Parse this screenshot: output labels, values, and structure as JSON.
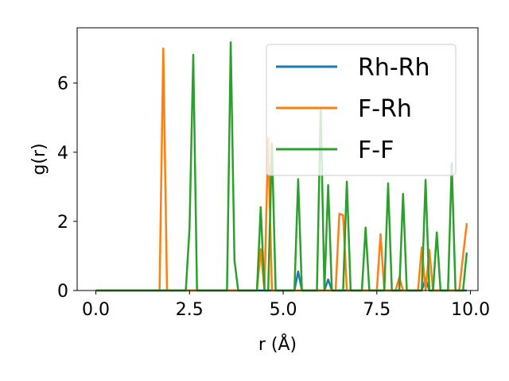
{
  "chart_data": {
    "type": "line",
    "title": "",
    "xlabel": "r (Å)",
    "ylabel": "g(r)",
    "xlim": [
      -0.5,
      10.2
    ],
    "ylim": [
      0,
      7.6
    ],
    "xticks": [
      0.0,
      2.5,
      5.0,
      7.5,
      10.0
    ],
    "xtick_labels": [
      "0.0",
      "2.5",
      "5.0",
      "7.5",
      "10.0"
    ],
    "yticks": [
      0,
      2,
      4,
      6
    ],
    "ytick_labels": [
      "0",
      "2",
      "4",
      "6"
    ],
    "grid": false,
    "legend_position": "top-right",
    "series": [
      {
        "name": "Rh-Rh",
        "color": "#1f77b4",
        "x": [
          0,
          5.3,
          5.4,
          5.5,
          6.1,
          6.2,
          6.3,
          8.7,
          8.8,
          8.9,
          9.9
        ],
        "y": [
          0,
          0,
          0.55,
          0,
          0,
          0.32,
          0,
          0,
          0.35,
          0,
          0
        ]
      },
      {
        "name": "F-Rh",
        "color": "#ff7f0e",
        "x": [
          0,
          1.7,
          1.8,
          1.9,
          4.3,
          4.4,
          4.5,
          4.6,
          4.7,
          6.4,
          6.5,
          6.6,
          6.7,
          7.5,
          7.6,
          7.7,
          8.0,
          8.1,
          8.2,
          8.6,
          8.7,
          8.8,
          8.9,
          9.0,
          9.1,
          9.7,
          9.8,
          9.9
        ],
        "y": [
          0,
          0,
          7.0,
          0,
          0,
          1.2,
          0,
          4.42,
          0,
          0,
          2.22,
          2.18,
          0,
          0,
          1.63,
          0,
          0,
          0.38,
          0,
          0,
          1.25,
          0,
          1.18,
          0,
          0,
          0,
          1.0,
          1.95
        ]
      },
      {
        "name": "F-F",
        "color": "#2ca02c",
        "x": [
          0,
          2.4,
          2.5,
          2.6,
          2.7,
          3.5,
          3.6,
          3.7,
          3.8,
          4.3,
          4.4,
          4.5,
          4.6,
          4.7,
          4.8,
          5.3,
          5.4,
          5.5,
          5.9,
          6.0,
          6.1,
          6.2,
          6.3,
          6.6,
          6.7,
          6.8,
          7.1,
          7.2,
          7.3,
          7.7,
          7.8,
          7.9,
          8.1,
          8.2,
          8.3,
          8.7,
          8.8,
          8.9,
          9.0,
          9.1,
          9.2,
          9.4,
          9.5,
          9.6,
          9.8,
          9.9
        ],
        "y": [
          0,
          0,
          1.8,
          6.82,
          0,
          0,
          7.18,
          0.88,
          0,
          0,
          2.41,
          0,
          0,
          4.25,
          0,
          0,
          3.22,
          0,
          0,
          5.3,
          0,
          3.05,
          0,
          0,
          3.15,
          0,
          0,
          1.82,
          0,
          0,
          3.1,
          0,
          0,
          2.8,
          0,
          0,
          3.2,
          0,
          0,
          1.68,
          0,
          0,
          3.68,
          0,
          0,
          1.1
        ]
      }
    ]
  }
}
